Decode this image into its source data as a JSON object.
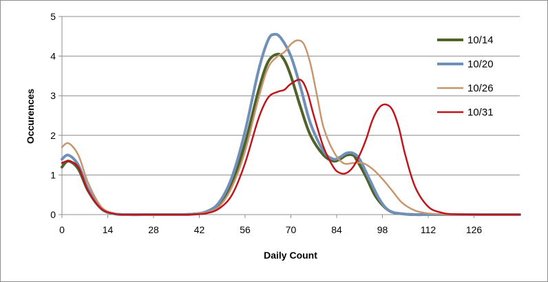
{
  "chart_data": {
    "type": "line",
    "title": "",
    "xlabel": "Daily Count",
    "ylabel": "Occurences",
    "xlim": [
      0,
      140
    ],
    "ylim": [
      0,
      5
    ],
    "xticks": [
      0,
      14,
      28,
      42,
      56,
      70,
      84,
      98,
      112,
      126
    ],
    "yticks": [
      0,
      1,
      2,
      3,
      4,
      5
    ],
    "grid": "horizontal",
    "legend_position": "top-right",
    "series": [
      {
        "name": "10/14",
        "color": "#4f6228",
        "x": [
          0,
          2,
          5,
          8,
          12,
          16,
          20,
          28,
          36,
          40,
          44,
          48,
          52,
          56,
          60,
          63,
          66,
          68,
          70,
          73,
          76,
          80,
          83,
          85,
          87,
          89,
          90,
          93,
          96,
          100,
          104,
          108,
          112,
          120,
          130,
          140
        ],
        "y": [
          1.2,
          1.35,
          1.15,
          0.6,
          0.15,
          0.02,
          0,
          0,
          0,
          0.01,
          0.06,
          0.25,
          0.8,
          1.8,
          3.1,
          3.85,
          4.05,
          3.9,
          3.5,
          2.7,
          2.0,
          1.5,
          1.35,
          1.4,
          1.5,
          1.5,
          1.4,
          0.95,
          0.45,
          0.1,
          0.02,
          0,
          0,
          0,
          0,
          0
        ]
      },
      {
        "name": "10/20",
        "color": "#6f90b8",
        "x": [
          0,
          2,
          5,
          8,
          12,
          16,
          20,
          28,
          36,
          40,
          44,
          48,
          52,
          56,
          60,
          63,
          65,
          67,
          70,
          73,
          76,
          80,
          83,
          85,
          87,
          89,
          91,
          94,
          97,
          100,
          104,
          108,
          112,
          120,
          130,
          140
        ],
        "y": [
          1.4,
          1.5,
          1.25,
          0.65,
          0.15,
          0.02,
          0,
          0,
          0,
          0.01,
          0.07,
          0.3,
          0.95,
          2.1,
          3.6,
          4.4,
          4.55,
          4.45,
          4.0,
          3.2,
          2.3,
          1.6,
          1.4,
          1.45,
          1.55,
          1.55,
          1.4,
          0.9,
          0.4,
          0.1,
          0.02,
          0,
          0,
          0,
          0,
          0
        ]
      },
      {
        "name": "10/26",
        "color": "#c8966e",
        "x": [
          0,
          2,
          5,
          8,
          12,
          16,
          20,
          28,
          36,
          40,
          44,
          48,
          52,
          56,
          60,
          63,
          66,
          68,
          70,
          72,
          74,
          76,
          78,
          80,
          83,
          86,
          89,
          92,
          95,
          98,
          101,
          104,
          108,
          112,
          116,
          120,
          130,
          140
        ],
        "y": [
          1.7,
          1.8,
          1.5,
          0.8,
          0.2,
          0.03,
          0,
          0,
          0,
          0.01,
          0.05,
          0.2,
          0.7,
          1.6,
          2.9,
          3.7,
          4.0,
          4.1,
          4.3,
          4.4,
          4.3,
          3.8,
          3.0,
          2.2,
          1.6,
          1.3,
          1.3,
          1.3,
          1.15,
          0.9,
          0.6,
          0.3,
          0.1,
          0.03,
          0.01,
          0,
          0,
          0
        ]
      },
      {
        "name": "10/31",
        "color": "#c0141a",
        "x": [
          0,
          2,
          5,
          8,
          12,
          16,
          20,
          28,
          36,
          40,
          44,
          48,
          52,
          56,
          60,
          63,
          66,
          68,
          70,
          73,
          75,
          77,
          80,
          83,
          85,
          87,
          89,
          91,
          93,
          95,
          97,
          99,
          101,
          103,
          105,
          108,
          112,
          116,
          120,
          130,
          140
        ],
        "y": [
          1.3,
          1.35,
          1.2,
          0.6,
          0.15,
          0.02,
          0,
          0,
          0,
          0.005,
          0.03,
          0.15,
          0.5,
          1.3,
          2.4,
          2.95,
          3.1,
          3.15,
          3.3,
          3.4,
          3.1,
          2.5,
          1.7,
          1.2,
          1.05,
          1.05,
          1.2,
          1.5,
          1.9,
          2.4,
          2.7,
          2.78,
          2.65,
          2.2,
          1.5,
          0.7,
          0.2,
          0.05,
          0.01,
          0,
          0
        ]
      }
    ]
  }
}
